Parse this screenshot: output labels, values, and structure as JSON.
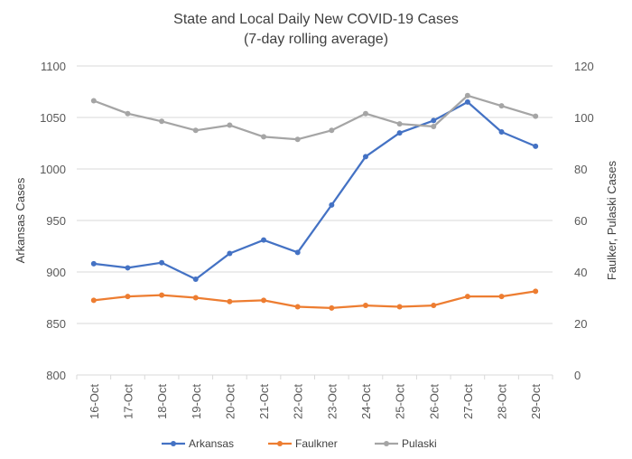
{
  "chart_data": {
    "type": "line",
    "title": "State and Local Daily New COVID-19 Cases",
    "subtitle": "(7-day rolling average)",
    "categories": [
      "16-Oct",
      "17-Oct",
      "18-Oct",
      "19-Oct",
      "20-Oct",
      "21-Oct",
      "22-Oct",
      "23-Oct",
      "24-Oct",
      "25-Oct",
      "26-Oct",
      "27-Oct",
      "28-Oct",
      "29-Oct"
    ],
    "left_axis": {
      "label": "Arkansas Cases",
      "min": 800,
      "max": 1100,
      "ticks": [
        "800",
        "850",
        "900",
        "950",
        "1000",
        "1050",
        "1100"
      ]
    },
    "right_axis": {
      "label": "Faulker, Pulaski Cases",
      "min": 0,
      "max": 120,
      "ticks": [
        "0",
        "20",
        "40",
        "60",
        "80",
        "100",
        "120"
      ]
    },
    "series": [
      {
        "name": "Arkansas",
        "axis": "left",
        "color": "#4472C4",
        "values": [
          908,
          904,
          909,
          893,
          918,
          931,
          919,
          965,
          1012,
          1035,
          1047,
          1065,
          1036,
          1022
        ]
      },
      {
        "name": "Faulkner",
        "axis": "right",
        "color": "#ED7D31",
        "values": [
          29,
          30.5,
          31,
          30,
          28.5,
          29,
          26.5,
          26,
          27,
          26.5,
          27,
          30.5,
          30.5,
          32.5
        ]
      },
      {
        "name": "Pulaski",
        "axis": "right",
        "color": "#A5A5A5",
        "values": [
          106.5,
          101.5,
          98.5,
          95,
          97,
          92.5,
          91.5,
          95,
          101.5,
          97.5,
          96.5,
          108.5,
          104.5,
          100.5
        ]
      }
    ],
    "grid": true,
    "legend_position": "bottom"
  }
}
